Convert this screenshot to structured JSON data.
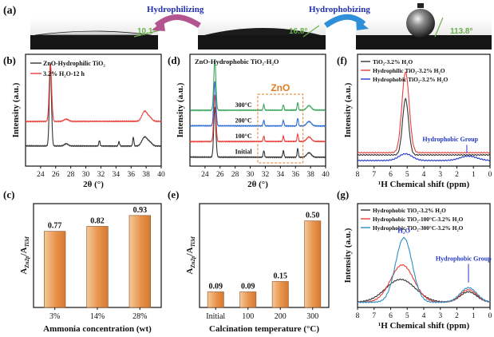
{
  "panel_labels": {
    "a": "(a)",
    "b": "(b)",
    "c": "(c)",
    "d": "(d)",
    "e": "(e)",
    "f": "(f)",
    "g": "(g)"
  },
  "panel_a": {
    "hydrophilizing": "Hydrophilizing",
    "hydrophobizing": "Hydrophobizing",
    "angle_left": "10.1°",
    "angle_mid": "16.8°",
    "angle_right": "113.8°",
    "colors": {
      "hydrophilizing_arrow": "#b4548f",
      "hydrophobizing_arrow": "#2f8fd8",
      "angle": "#6ab04c",
      "text": "#1f2fb0"
    }
  },
  "chart_data": [
    {
      "id": "b",
      "type": "line",
      "xlabel": "2θ (°)",
      "ylabel": "Intensity (a.u.)",
      "xlim": [
        22,
        40
      ],
      "xticks": [
        "24",
        "26",
        "28",
        "30",
        "32",
        "34",
        "36",
        "38",
        "40"
      ],
      "legend": [
        "ZnO-Hydrophilic TiO₂",
        "3.2% H₂O-12 h"
      ],
      "series": [
        {
          "name": "ZnO-Hydrophilic TiO₂",
          "color": "#333333",
          "offset": 0.18,
          "peaks": [
            [
              25.3,
              0.72,
              0.14
            ],
            [
              27.4,
              0.02,
              0.25
            ],
            [
              31.8,
              0.05,
              0.08
            ],
            [
              34.4,
              0.04,
              0.08
            ],
            [
              36.3,
              0.08,
              0.08
            ],
            [
              37.8,
              0.08,
              0.35
            ],
            [
              38.5,
              0.03,
              0.3
            ]
          ]
        },
        {
          "name": "3.2% H₂O-12 h",
          "color": "#e8403a",
          "offset": 0.4,
          "peaks": [
            [
              25.3,
              0.52,
              0.16
            ],
            [
              27.4,
              0.02,
              0.3
            ],
            [
              37.8,
              0.09,
              0.35
            ],
            [
              38.5,
              0.03,
              0.3
            ]
          ]
        }
      ]
    },
    {
      "id": "d",
      "type": "line",
      "xlabel": "2θ (°)",
      "ylabel": "Intensity (a.u.)",
      "xlim": [
        22,
        40
      ],
      "xticks": [
        "24",
        "26",
        "28",
        "30",
        "32",
        "34",
        "36",
        "38",
        "40"
      ],
      "legend_title": "ZnO-Hydrophobic TiO₂-H₂O",
      "highlight_label": "ZnO",
      "highlight_range": [
        31,
        37
      ],
      "series": [
        {
          "name": "Initial",
          "color": "#333333",
          "offset": 0.08,
          "peaks": [
            [
              25.3,
              0.45,
              0.14
            ],
            [
              31.8,
              0.06,
              0.08
            ],
            [
              34.4,
              0.06,
              0.08
            ],
            [
              36.3,
              0.08,
              0.08
            ],
            [
              37.8,
              0.04,
              0.3
            ]
          ]
        },
        {
          "name": "100°C",
          "color": "#e8403a",
          "offset": 0.22,
          "peaks": [
            [
              25.3,
              0.42,
              0.14
            ],
            [
              31.8,
              0.05,
              0.08
            ],
            [
              34.4,
              0.05,
              0.08
            ],
            [
              36.3,
              0.07,
              0.08
            ],
            [
              37.8,
              0.04,
              0.3
            ]
          ]
        },
        {
          "name": "200°C",
          "color": "#2e6fd6",
          "offset": 0.36,
          "peaks": [
            [
              25.3,
              0.4,
              0.14
            ],
            [
              31.8,
              0.05,
              0.08
            ],
            [
              34.4,
              0.05,
              0.08
            ],
            [
              36.3,
              0.07,
              0.08
            ],
            [
              37.8,
              0.04,
              0.3
            ]
          ]
        },
        {
          "name": "300°C",
          "color": "#3aa55a",
          "offset": 0.5,
          "peaks": [
            [
              25.3,
              0.45,
              0.14
            ],
            [
              31.8,
              0.05,
              0.08
            ],
            [
              34.4,
              0.05,
              0.08
            ],
            [
              36.3,
              0.07,
              0.08
            ],
            [
              37.8,
              0.04,
              0.3
            ]
          ]
        }
      ]
    },
    {
      "id": "c",
      "type": "bar",
      "xlabel": "Ammonia concentration (wt)",
      "ylabel": "A_Zn2p/A_Ti3d",
      "categories": [
        "3%",
        "14%",
        "28%"
      ],
      "values": [
        0.77,
        0.82,
        0.93
      ],
      "value_labels": [
        "0.77",
        "0.82",
        "0.93"
      ],
      "ylim": [
        0,
        1.05
      ]
    },
    {
      "id": "e",
      "type": "bar",
      "xlabel": "Calcination temperature (°C)",
      "ylabel": "A_Zn2p/A_Ti3d",
      "categories": [
        "Initial",
        "100",
        "200",
        "300"
      ],
      "values": [
        0.09,
        0.09,
        0.15,
        0.5
      ],
      "value_labels": [
        "0.09",
        "0.09",
        "0.15",
        "0.50"
      ],
      "ylim": [
        0,
        0.6
      ]
    },
    {
      "id": "f",
      "type": "line",
      "xlabel": "¹H Chemical shift (ppm)",
      "ylabel": "Intensity (a.u.)",
      "xlim": [
        8,
        0
      ],
      "xticks": [
        "8",
        "7",
        "6",
        "5",
        "4",
        "3",
        "2",
        "1",
        "0"
      ],
      "legend": [
        "TiO₂-3.2% H₂O",
        "Hydrophilic TiO₂-3.2% H₂O",
        "Hydrophobic TiO₂-3.2% H₂O"
      ],
      "annotation": "Hydrophobic Group",
      "series": [
        {
          "name": "TiO₂-3.2% H₂O",
          "color": "#333333",
          "offset": 0.1,
          "peaks": [
            [
              5.1,
              0.5,
              0.18
            ]
          ]
        },
        {
          "name": "Hydrophilic TiO₂-3.2% H₂O",
          "color": "#e8403a",
          "offset": 0.12,
          "peaks": [
            [
              5.1,
              0.72,
              0.22
            ]
          ]
        },
        {
          "name": "Hydrophobic TiO₂-3.2% H₂O",
          "color": "#2238c8",
          "offset": 0.05,
          "peaks": [
            [
              5.1,
              0.06,
              0.4
            ],
            [
              1.3,
              0.04,
              0.5
            ]
          ]
        }
      ]
    },
    {
      "id": "g",
      "type": "line",
      "xlabel": "¹H Chemical shift (ppm)",
      "ylabel": "Intensity (a.u.)",
      "xlim": [
        8,
        0
      ],
      "xticks": [
        "8",
        "7",
        "6",
        "5",
        "4",
        "3",
        "2",
        "1",
        "0"
      ],
      "legend": [
        "Hydrophobic TiO₂-3.2% H₂O",
        "Hydrophobic TiO₂-100°C-3.2% H₂O",
        "Hydrophobic TiO₂-300°C-3.2% H₂O"
      ],
      "annotations": [
        "H₂O",
        "Hydrophobic Group"
      ],
      "series": [
        {
          "name": "Hydrophobic TiO₂-3.2% H₂O",
          "color": "#333333",
          "offset": 0.05,
          "peaks": [
            [
              5.4,
              0.22,
              0.9
            ],
            [
              1.3,
              0.1,
              0.5
            ]
          ]
        },
        {
          "name": "Hydrophobic TiO₂-100°C-3.2% H₂O",
          "color": "#e8403a",
          "offset": 0.05,
          "peaks": [
            [
              5.3,
              0.36,
              0.7
            ],
            [
              1.3,
              0.12,
              0.5
            ]
          ]
        },
        {
          "name": "Hydrophobic TiO₂-300°C-3.2% H₂O",
          "color": "#2b8ec4",
          "offset": 0.05,
          "peaks": [
            [
              5.2,
              0.62,
              0.5
            ],
            [
              1.3,
              0.14,
              0.5
            ]
          ]
        }
      ]
    }
  ]
}
